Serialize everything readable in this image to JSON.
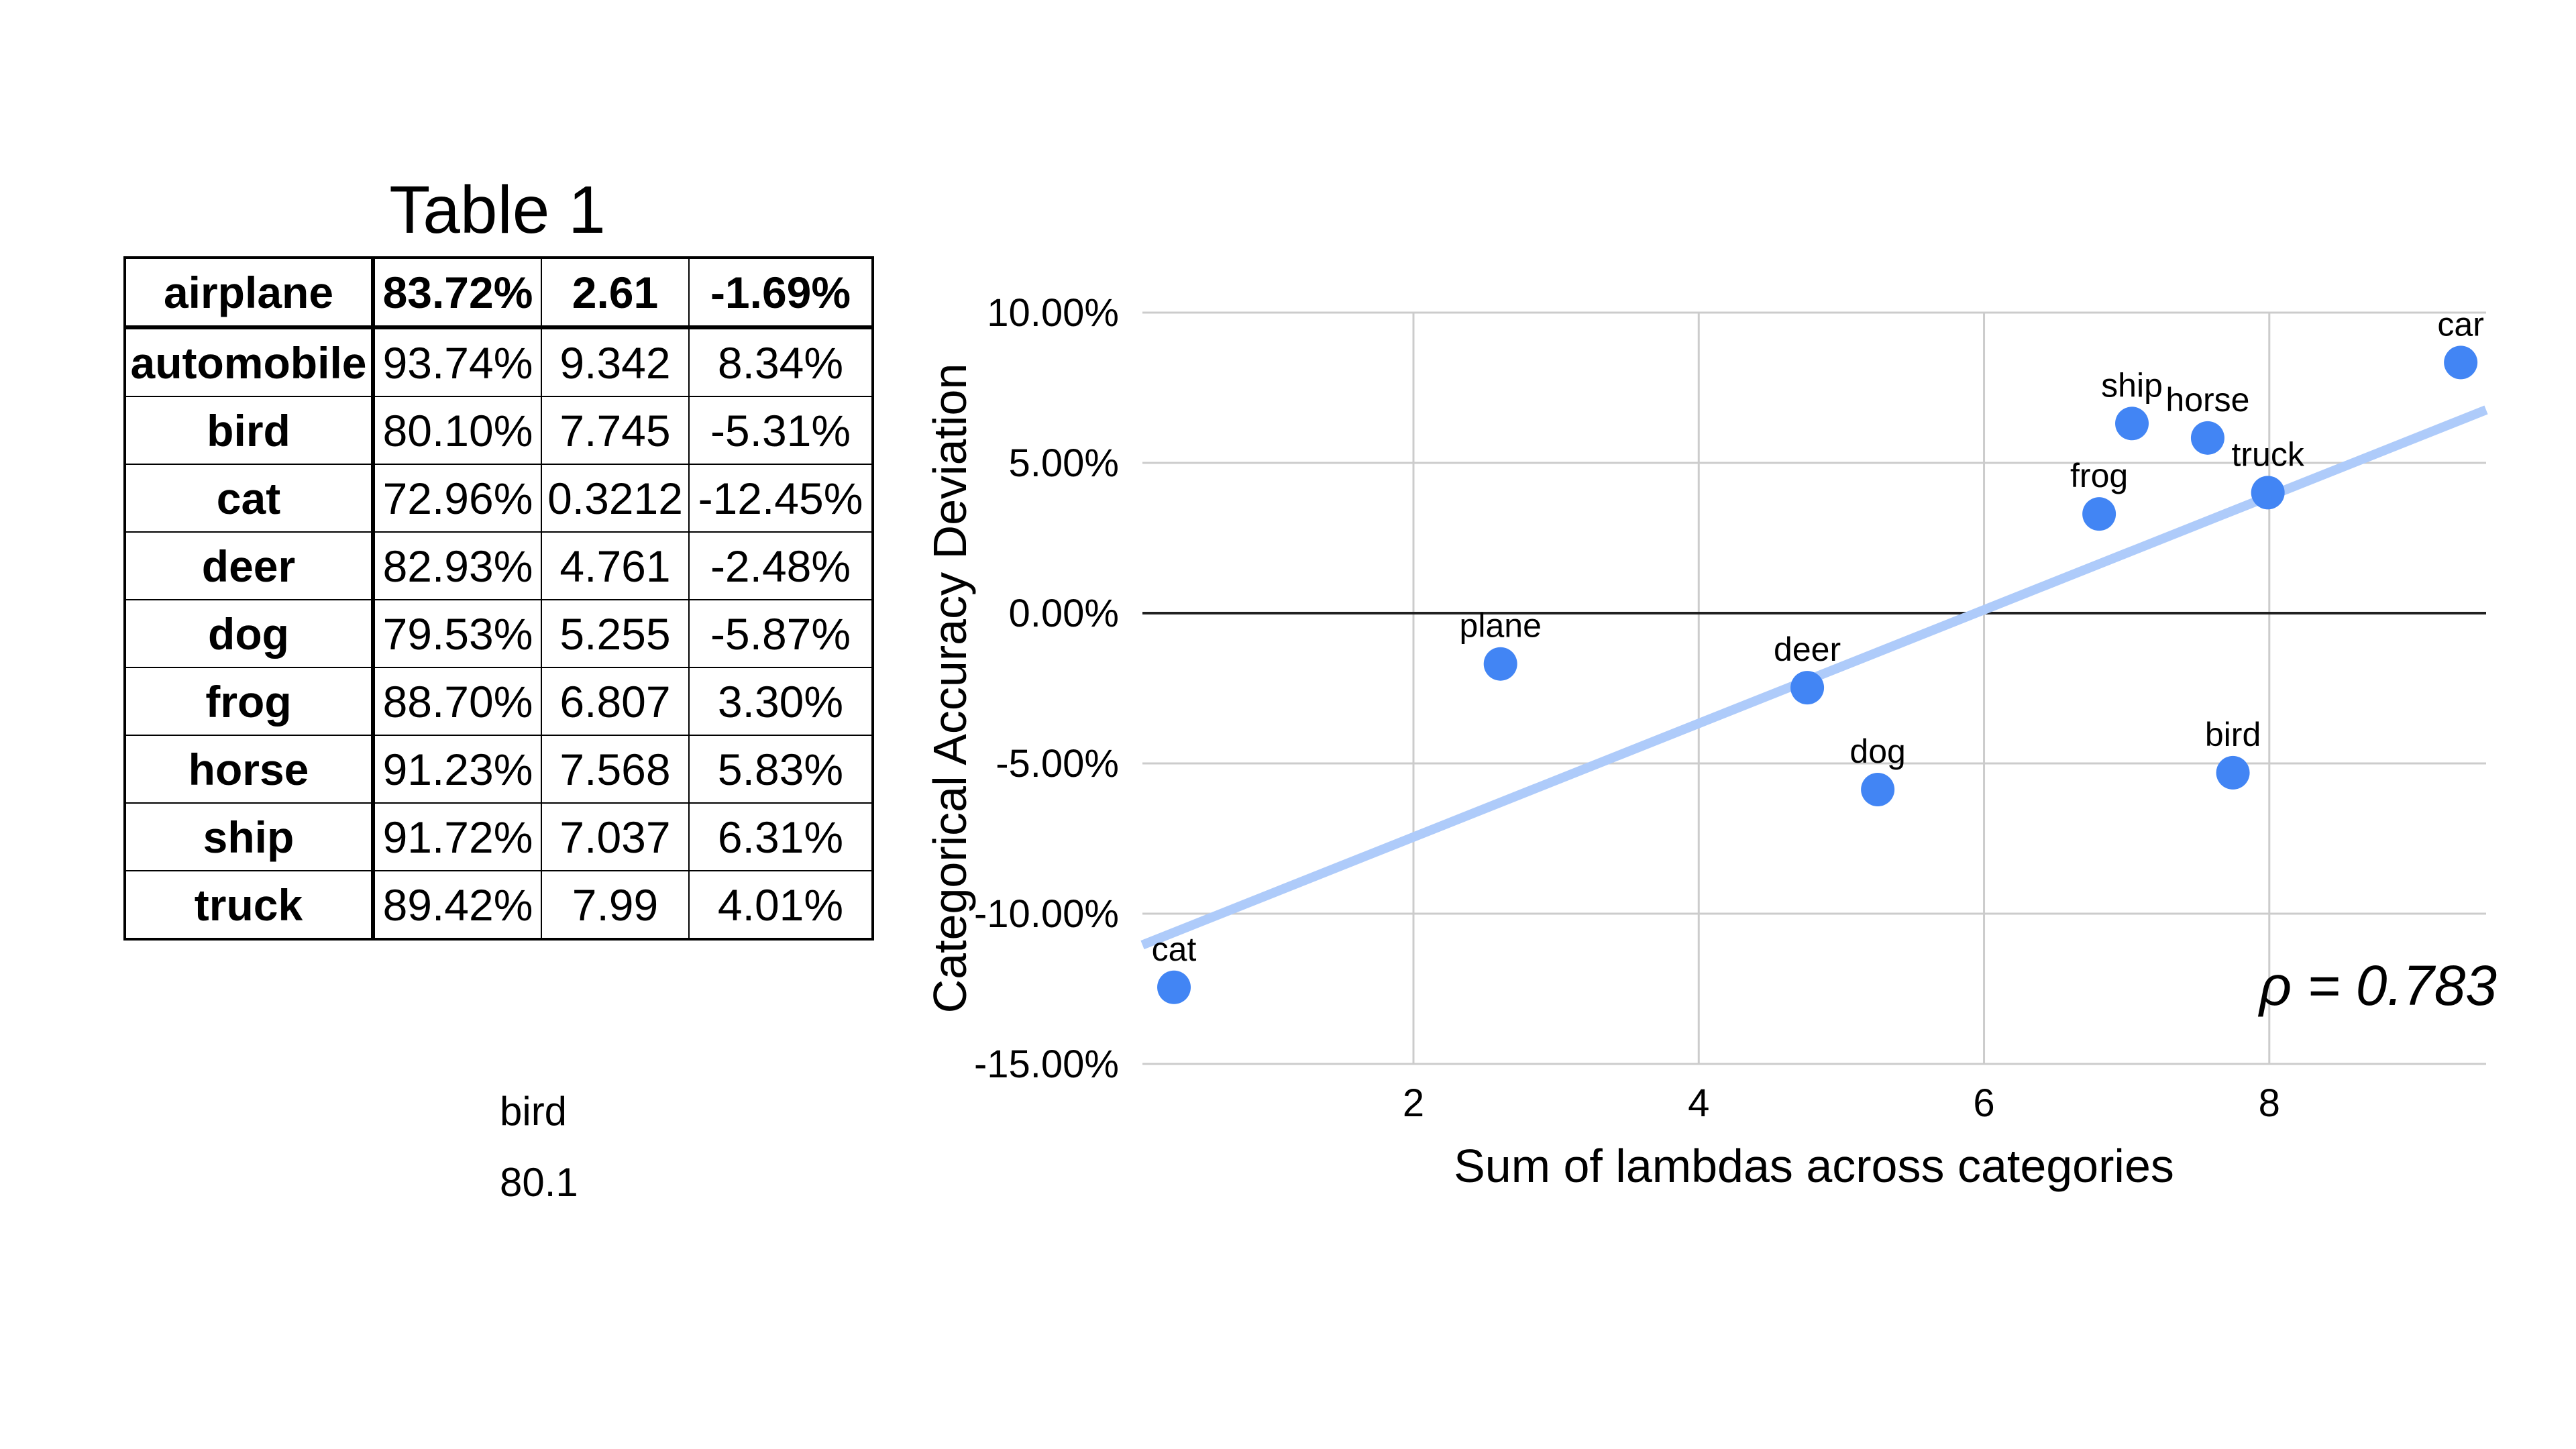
{
  "table_section": {
    "title": "Table 1",
    "rows": [
      [
        "airplane",
        "83.72%",
        "2.61",
        "-1.69%"
      ],
      [
        "automobile",
        "93.74%",
        "9.342",
        "8.34%"
      ],
      [
        "bird",
        "80.10%",
        "7.745",
        "-5.31%"
      ],
      [
        "cat",
        "72.96%",
        "0.3212",
        "-12.45%"
      ],
      [
        "deer",
        "82.93%",
        "4.761",
        "-2.48%"
      ],
      [
        "dog",
        "79.53%",
        "5.255",
        "-5.87%"
      ],
      [
        "frog",
        "88.70%",
        "6.807",
        "3.30%"
      ],
      [
        "horse",
        "91.23%",
        "7.568",
        "5.83%"
      ],
      [
        "ship",
        "91.72%",
        "7.037",
        "6.31%"
      ],
      [
        "truck",
        "89.42%",
        "7.99",
        "4.01%"
      ]
    ],
    "notes": [
      "bird",
      "80.1"
    ]
  },
  "chart_data": {
    "type": "scatter",
    "title": "",
    "xlabel": "Sum of lambdas across categories",
    "ylabel": "Categorical Accuracy Deviation",
    "xlim": [
      0.1,
      9.52
    ],
    "ylim": [
      -15,
      10
    ],
    "grid": true,
    "x_gridlines": [
      {
        "value": 2,
        "label": "2"
      },
      {
        "value": 4,
        "label": "4"
      },
      {
        "value": 6,
        "label": "6"
      },
      {
        "value": 8,
        "label": "8"
      }
    ],
    "y_gridlines": [
      {
        "value": 10,
        "label": "10.00%"
      },
      {
        "value": 5,
        "label": "5.00%"
      },
      {
        "value": 0,
        "label": "0.00%"
      },
      {
        "value": -5,
        "label": "-5.00%"
      },
      {
        "value": -10,
        "label": "-10.00%"
      },
      {
        "value": -15,
        "label": "-15.00%"
      }
    ],
    "points": [
      {
        "label": "plane",
        "x": 2.61,
        "y": -1.69
      },
      {
        "label": "car",
        "x": 9.342,
        "y": 8.34
      },
      {
        "label": "bird",
        "x": 7.745,
        "y": -5.31
      },
      {
        "label": "cat",
        "x": 0.3212,
        "y": -12.45
      },
      {
        "label": "deer",
        "x": 4.761,
        "y": -2.48
      },
      {
        "label": "dog",
        "x": 5.255,
        "y": -5.87
      },
      {
        "label": "frog",
        "x": 6.807,
        "y": 3.3
      },
      {
        "label": "horse",
        "x": 7.568,
        "y": 5.83
      },
      {
        "label": "ship",
        "x": 7.037,
        "y": 6.31
      },
      {
        "label": "truck",
        "x": 7.99,
        "y": 4.01
      }
    ],
    "trendline": {
      "slope": 1.89,
      "intercept": -11.23
    },
    "annotation": "ρ = 0.783",
    "rho": 0.783,
    "colors": {
      "point": "#4285F4",
      "trend": "#AECBFA",
      "grid": "#cccccc",
      "zero_line": "#212121",
      "text": "#000000"
    }
  }
}
